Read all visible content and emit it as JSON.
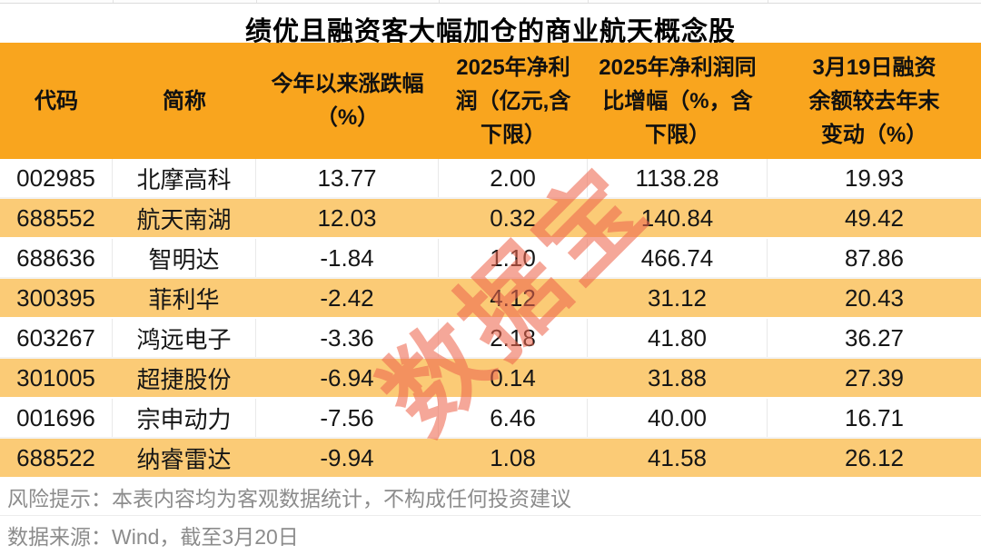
{
  "title": "绩优且融资客大幅加仓的商业航天概念股",
  "watermark": "数据宝",
  "colors": {
    "header_bg": "#F9A51E",
    "row_highlight_bg": "#FBCB76",
    "watermark_color": "#EE684F",
    "footer_text": "#8C8C8C"
  },
  "table": {
    "columns": [
      {
        "key": "code",
        "label": "代码"
      },
      {
        "key": "name",
        "label": "简称"
      },
      {
        "key": "chg",
        "label": "今年以来涨跌幅\n（%）"
      },
      {
        "key": "profit",
        "label": "2025年净利\n润（亿元,含\n下限）"
      },
      {
        "key": "yoy",
        "label": "2025年净利润同\n比增幅（%，含\n下限）"
      },
      {
        "key": "margin",
        "label": "3月19日融资\n余额较去年末\n变动（%）"
      }
    ],
    "rows": [
      {
        "code": "002985",
        "name": "北摩高科",
        "chg": "13.77",
        "profit": "2.00",
        "yoy": "1138.28",
        "margin": "19.93",
        "highlight": false
      },
      {
        "code": "688552",
        "name": "航天南湖",
        "chg": "12.03",
        "profit": "0.32",
        "yoy": "140.84",
        "margin": "49.42",
        "highlight": true
      },
      {
        "code": "688636",
        "name": "智明达",
        "chg": "-1.84",
        "profit": "1.10",
        "yoy": "466.74",
        "margin": "87.86",
        "highlight": false
      },
      {
        "code": "300395",
        "name": "菲利华",
        "chg": "-2.42",
        "profit": "4.12",
        "yoy": "31.12",
        "margin": "20.43",
        "highlight": true
      },
      {
        "code": "603267",
        "name": "鸿远电子",
        "chg": "-3.36",
        "profit": "2.18",
        "yoy": "41.80",
        "margin": "36.27",
        "highlight": false
      },
      {
        "code": "301005",
        "name": "超捷股份",
        "chg": "-6.94",
        "profit": "0.14",
        "yoy": "31.88",
        "margin": "27.39",
        "highlight": true
      },
      {
        "code": "001696",
        "name": "宗申动力",
        "chg": "-7.56",
        "profit": "6.46",
        "yoy": "40.00",
        "margin": "16.71",
        "highlight": false
      },
      {
        "code": "688522",
        "name": "纳睿雷达",
        "chg": "-9.94",
        "profit": "1.08",
        "yoy": "41.58",
        "margin": "26.12",
        "highlight": true
      }
    ]
  },
  "footer": {
    "risk_note": "风险提示：本表内容均为客观数据统计，不构成任何投资建议",
    "data_source": "数据来源：Wind，截至3月20日"
  }
}
